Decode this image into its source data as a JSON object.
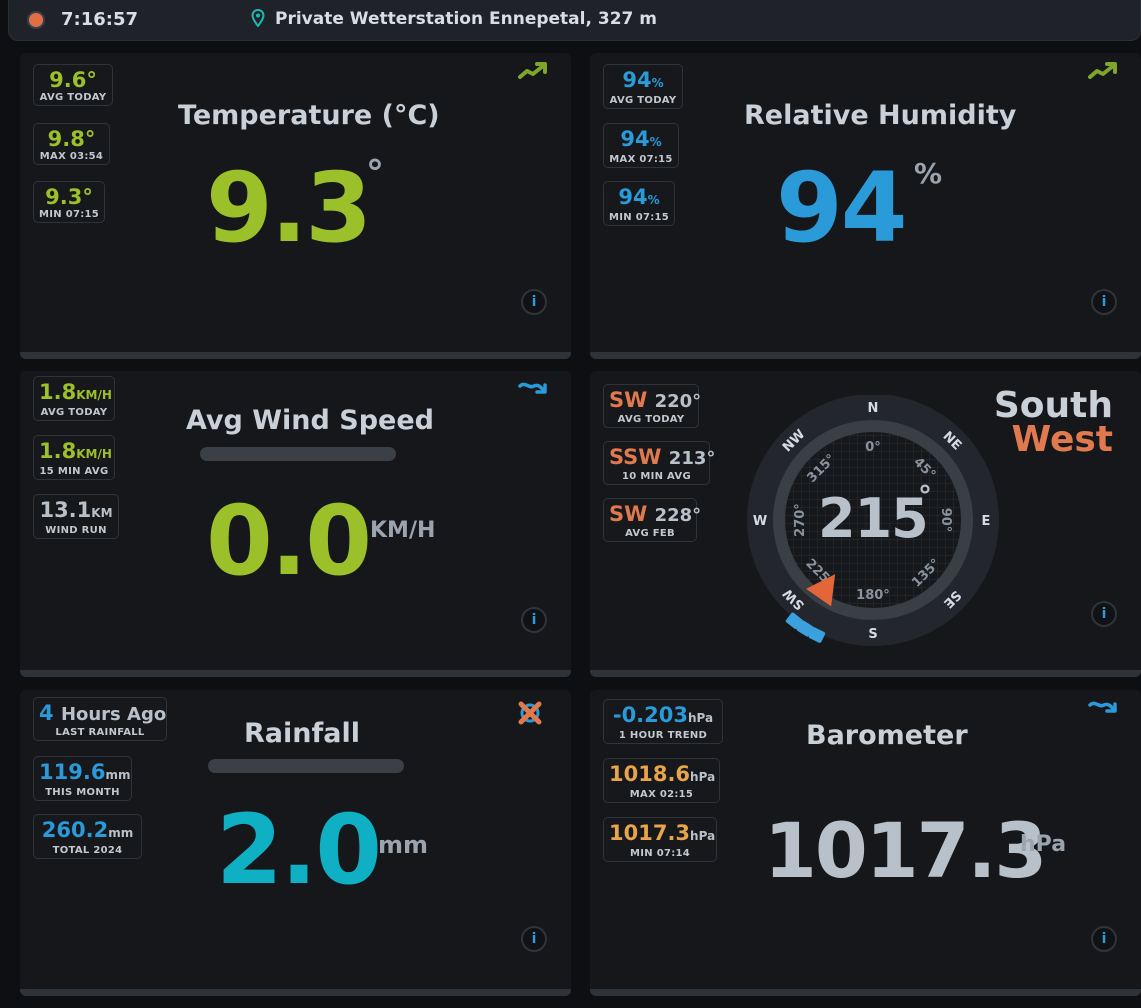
{
  "header": {
    "time": "7:16:57",
    "station": "Private Wetterstation Ennepetal, 327 m"
  },
  "temperature": {
    "title": "Temperature (°C)",
    "value": "9.3",
    "unit": "°",
    "trend_icon": "trend-up-icon",
    "stats": [
      {
        "value": "9.6°",
        "label": "AVG TODAY"
      },
      {
        "value": "9.8°",
        "label": "MAX 03:54"
      },
      {
        "value": "9.3°",
        "label": "MIN 07:15"
      }
    ]
  },
  "humidity": {
    "title": "Relative Humidity",
    "value": "94",
    "unit": "%",
    "trend_icon": "trend-up-icon",
    "stats": [
      {
        "value": "94",
        "unit": "%",
        "label": "AVG TODAY"
      },
      {
        "value": "94",
        "unit": "%",
        "label": "MAX 07:15"
      },
      {
        "value": "94",
        "unit": "%",
        "label": "MIN 07:15"
      }
    ]
  },
  "wind_speed": {
    "title": "Avg Wind Speed",
    "value": "0.0",
    "unit": "KM/H",
    "trend_icon": "trend-down-icon",
    "stats": [
      {
        "value": "1.8",
        "unit": "KM/H",
        "label": "AVG TODAY"
      },
      {
        "value": "1.8",
        "unit": "KM/H",
        "label": "15 MIN AVG"
      },
      {
        "value": "13.1",
        "unit": "KM",
        "label": "WIND RUN"
      }
    ]
  },
  "wind_direction": {
    "value": "215",
    "unit": "°",
    "direction_line1": "South",
    "direction_line2": "West",
    "degrees_value": 215,
    "stats": [
      {
        "dir": "SW",
        "deg": "220°",
        "label": "AVG TODAY"
      },
      {
        "dir": "SSW",
        "deg": "213°",
        "label": "10 MIN AVG"
      },
      {
        "dir": "SW",
        "deg": "228°",
        "label": "AVG FEB"
      }
    ],
    "compass": {
      "cardinals": [
        "N",
        "NE",
        "E",
        "SE",
        "S",
        "SW",
        "W",
        "NW"
      ],
      "inner_labels": [
        "0°",
        "45°",
        "90°",
        "135°",
        "180°",
        "225°",
        "270°",
        "315°"
      ]
    }
  },
  "rainfall": {
    "title": "Rainfall",
    "value": "2.0",
    "unit": "mm",
    "trend_icon": "no-trend-icon",
    "stats": [
      {
        "value": "4",
        "unit": "Hours Ago",
        "label": "LAST RAINFALL"
      },
      {
        "value": "119.6",
        "unit": "mm",
        "label": "THIS MONTH"
      },
      {
        "value": "260.2",
        "unit": "mm",
        "label": "TOTAL 2024"
      }
    ]
  },
  "barometer": {
    "title": "Barometer",
    "value": "1017.3",
    "unit": "hPa",
    "trend_icon": "trend-down-icon",
    "stats": [
      {
        "value": "-0.203",
        "unit": "hPa",
        "label": "1 HOUR TREND"
      },
      {
        "value": "1018.6",
        "unit": "hPa",
        "label": "MAX 02:15"
      },
      {
        "value": "1017.3",
        "unit": "hPa",
        "label": "MIN 07:14"
      }
    ]
  },
  "info_label": "i"
}
